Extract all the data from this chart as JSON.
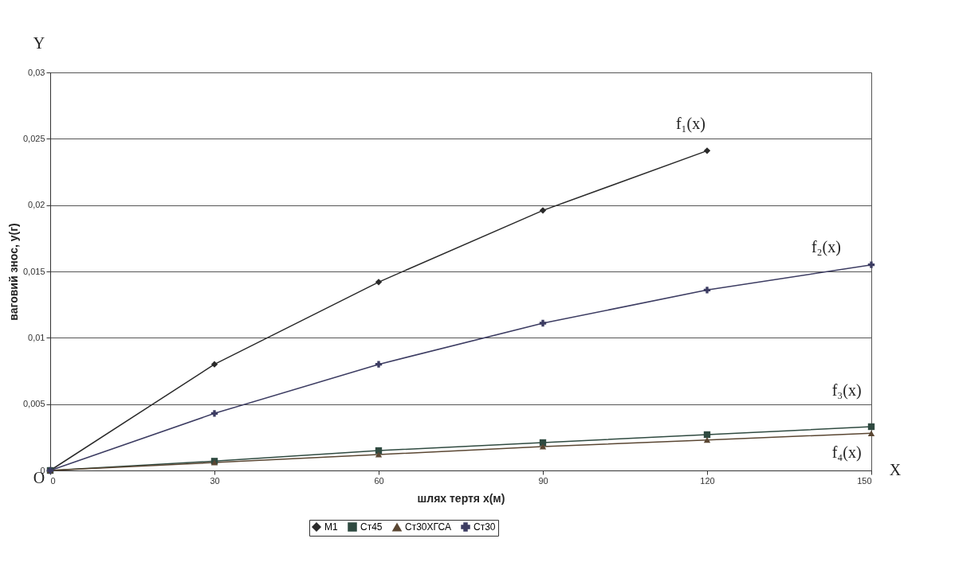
{
  "chart_data": {
    "type": "line",
    "xlabel": "шлях тертя х(м)",
    "ylabel": "ваговий знос, у(г)",
    "x": [
      0,
      30,
      60,
      90,
      120,
      150
    ],
    "series": [
      {
        "name": "М1",
        "color": "#2a2a2a",
        "marker": "diamond",
        "values": [
          0,
          0.008,
          0.0142,
          0.0196,
          0.0241,
          null
        ]
      },
      {
        "name": "Ст45",
        "color": "#2f4a40",
        "marker": "square",
        "values": [
          0,
          0.0007,
          0.0015,
          0.0021,
          0.0027,
          0.0033
        ]
      },
      {
        "name": "Ст30ХГСА",
        "color": "#5a4632",
        "marker": "triangle",
        "values": [
          0,
          0.0006,
          0.0012,
          0.0018,
          0.0023,
          0.0028
        ]
      },
      {
        "name": "Ст30",
        "color": "#3c3c62",
        "marker": "cross",
        "values": [
          0,
          0.0043,
          0.008,
          0.0111,
          0.0136,
          0.0155
        ]
      }
    ],
    "xlim": [
      0,
      150
    ],
    "xticks": [
      0,
      30,
      60,
      90,
      120,
      150
    ],
    "ylim": [
      0,
      0.03
    ],
    "yticks": [
      0,
      {
        "value": 0.005,
        "label": "0,005"
      },
      {
        "value": 0.01,
        "label": "0,01"
      },
      {
        "value": 0.015,
        "label": "0,015"
      },
      {
        "value": 0.02,
        "label": "0,02"
      },
      {
        "value": 0.025,
        "label": "0,025"
      },
      {
        "value": 0.03,
        "label": "0,03"
      }
    ],
    "grid": "y",
    "legend": "bottom",
    "annotations": [
      "f₁(x)",
      "f₂(x)",
      "f₃(x)",
      "f₄(x)",
      "Y",
      "X",
      "O"
    ]
  }
}
